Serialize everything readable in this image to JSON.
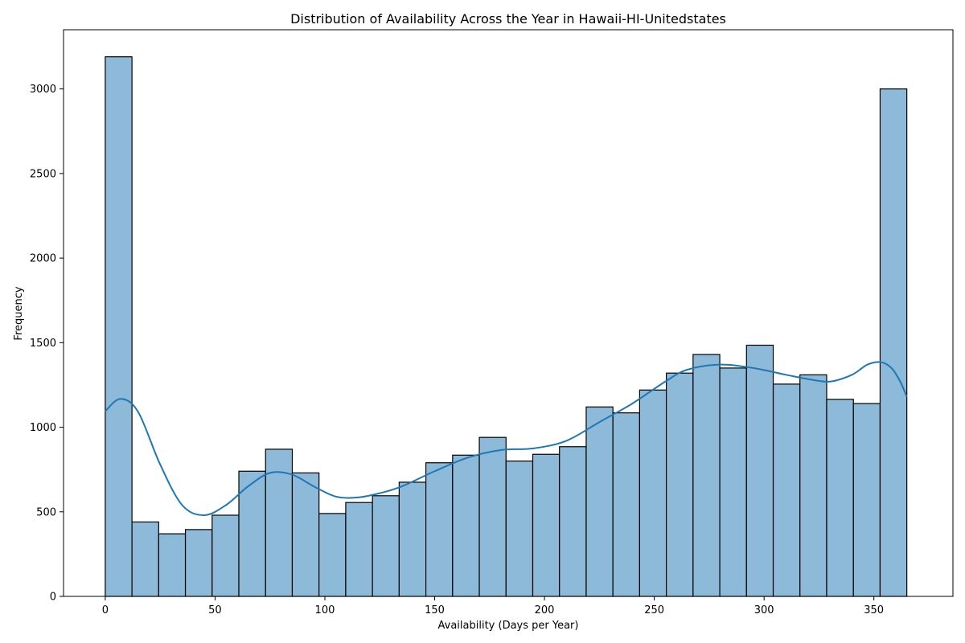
{
  "chart_data": {
    "type": "bar",
    "title": "Distribution of Availability Across the Year in Hawaii-HI-Unitedstates",
    "xlabel": "Availability (Days per Year)",
    "ylabel": "Frequency",
    "xlim": [
      -19,
      386
    ],
    "ylim": [
      0,
      3350
    ],
    "xticks": [
      0,
      50,
      100,
      150,
      200,
      250,
      300,
      350
    ],
    "yticks": [
      0,
      500,
      1000,
      1500,
      2000,
      2500,
      3000,
      3500
    ],
    "bin_start": 0,
    "bin_width": 12.1667,
    "values": [
      3190,
      440,
      370,
      395,
      480,
      740,
      870,
      730,
      490,
      555,
      595,
      675,
      790,
      835,
      940,
      800,
      840,
      885,
      1120,
      1085,
      1220,
      1320,
      1430,
      1350,
      1485,
      1255,
      1310,
      1165,
      1140,
      3000
    ],
    "kde": {
      "x": [
        0,
        7,
        15,
        25,
        35,
        45,
        55,
        65,
        75,
        85,
        95,
        105,
        115,
        125,
        135,
        150,
        165,
        180,
        195,
        210,
        225,
        240,
        255,
        265,
        280,
        295,
        310,
        320,
        330,
        340,
        347,
        353,
        358,
        362,
        365
      ],
      "y": [
        1095,
        1168,
        1090,
        780,
        540,
        480,
        540,
        650,
        730,
        720,
        650,
        590,
        585,
        610,
        650,
        740,
        820,
        865,
        875,
        920,
        1030,
        1140,
        1270,
        1340,
        1370,
        1350,
        1310,
        1285,
        1270,
        1310,
        1370,
        1385,
        1350,
        1270,
        1180
      ]
    },
    "grid": false,
    "colors": {
      "bar_fill": "#8ebad9",
      "bar_edge": "#000000",
      "kde_line": "#1f77b4"
    }
  }
}
